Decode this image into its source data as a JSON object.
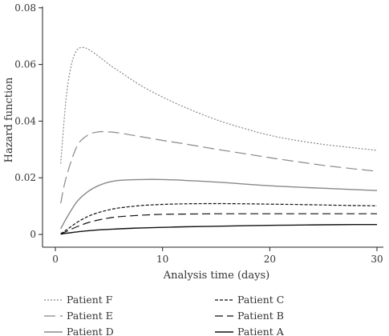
{
  "chart_data": {
    "type": "line",
    "title": "",
    "xlabel": "Analysis time (days)",
    "ylabel": "Hazard function",
    "xlim": [
      0,
      30
    ],
    "ylim": [
      0,
      0.08
    ],
    "x_ticks": [
      "0",
      "10",
      "20",
      "30"
    ],
    "y_ticks": [
      "0",
      "0.02",
      "0.04",
      "0.06",
      "0.08"
    ],
    "grid": false,
    "legend_position": "bottom",
    "series": [
      {
        "name": "Patient F",
        "style": "dotted",
        "color": "#888888",
        "x": [
          0.5,
          1,
          1.5,
          2,
          2.5,
          3,
          4,
          5,
          6,
          8,
          10,
          12,
          15,
          18,
          20,
          22,
          25,
          28,
          30
        ],
        "y": [
          0.025,
          0.048,
          0.06,
          0.065,
          0.066,
          0.0655,
          0.063,
          0.06,
          0.0575,
          0.0525,
          0.0485,
          0.045,
          0.0405,
          0.037,
          0.035,
          0.0335,
          0.0318,
          0.0305,
          0.0297
        ]
      },
      {
        "name": "Patient E",
        "style": "long-dash",
        "color": "#888888",
        "x": [
          0.5,
          1,
          2,
          3,
          4,
          5,
          6,
          8,
          10,
          12,
          15,
          18,
          20,
          22,
          25,
          28,
          30
        ],
        "y": [
          0.011,
          0.02,
          0.031,
          0.035,
          0.0362,
          0.0362,
          0.0358,
          0.0345,
          0.0332,
          0.032,
          0.0301,
          0.0283,
          0.0271,
          0.026,
          0.0244,
          0.0231,
          0.0223
        ]
      },
      {
        "name": "Patient D",
        "style": "solid",
        "color": "#888888",
        "x": [
          0.5,
          1,
          2,
          3,
          4,
          5,
          6,
          8,
          10,
          12,
          15,
          18,
          20,
          22,
          25,
          28,
          30
        ],
        "y": [
          0.002,
          0.0055,
          0.0115,
          0.015,
          0.0172,
          0.0185,
          0.0191,
          0.0194,
          0.0194,
          0.0191,
          0.0185,
          0.0177,
          0.0172,
          0.0168,
          0.0163,
          0.0158,
          0.0155
        ]
      },
      {
        "name": "Patient C",
        "style": "short-dash",
        "color": "#111111",
        "x": [
          0.5,
          1,
          2,
          3,
          4,
          5,
          6,
          8,
          10,
          12,
          15,
          18,
          20,
          22,
          25,
          28,
          30
        ],
        "y": [
          0.0003,
          0.0015,
          0.0042,
          0.0063,
          0.0077,
          0.0087,
          0.0094,
          0.0102,
          0.0106,
          0.0108,
          0.0109,
          0.0108,
          0.0107,
          0.0106,
          0.0104,
          0.0102,
          0.0101
        ]
      },
      {
        "name": "Patient B",
        "style": "dash",
        "color": "#111111",
        "x": [
          0.5,
          1,
          2,
          3,
          4,
          5,
          6,
          8,
          10,
          12,
          15,
          18,
          20,
          22,
          25,
          28,
          30
        ],
        "y": [
          0.0002,
          0.001,
          0.0027,
          0.0041,
          0.0051,
          0.0058,
          0.0063,
          0.0068,
          0.0071,
          0.0072,
          0.0073,
          0.0073,
          0.0073,
          0.0073,
          0.0073,
          0.0073,
          0.0073
        ]
      },
      {
        "name": "Patient A",
        "style": "solid",
        "color": "#111111",
        "x": [
          0.5,
          1,
          2,
          3,
          4,
          5,
          6,
          8,
          10,
          12,
          15,
          18,
          20,
          22,
          25,
          28,
          30
        ],
        "y": [
          0.0001,
          0.0004,
          0.0009,
          0.0013,
          0.0016,
          0.0018,
          0.002,
          0.0023,
          0.0025,
          0.0027,
          0.0029,
          0.0031,
          0.0032,
          0.0033,
          0.0034,
          0.0035,
          0.0035
        ]
      }
    ],
    "legend_order": [
      "Patient F",
      "Patient C",
      "Patient E",
      "Patient B",
      "Patient D",
      "Patient A"
    ]
  }
}
